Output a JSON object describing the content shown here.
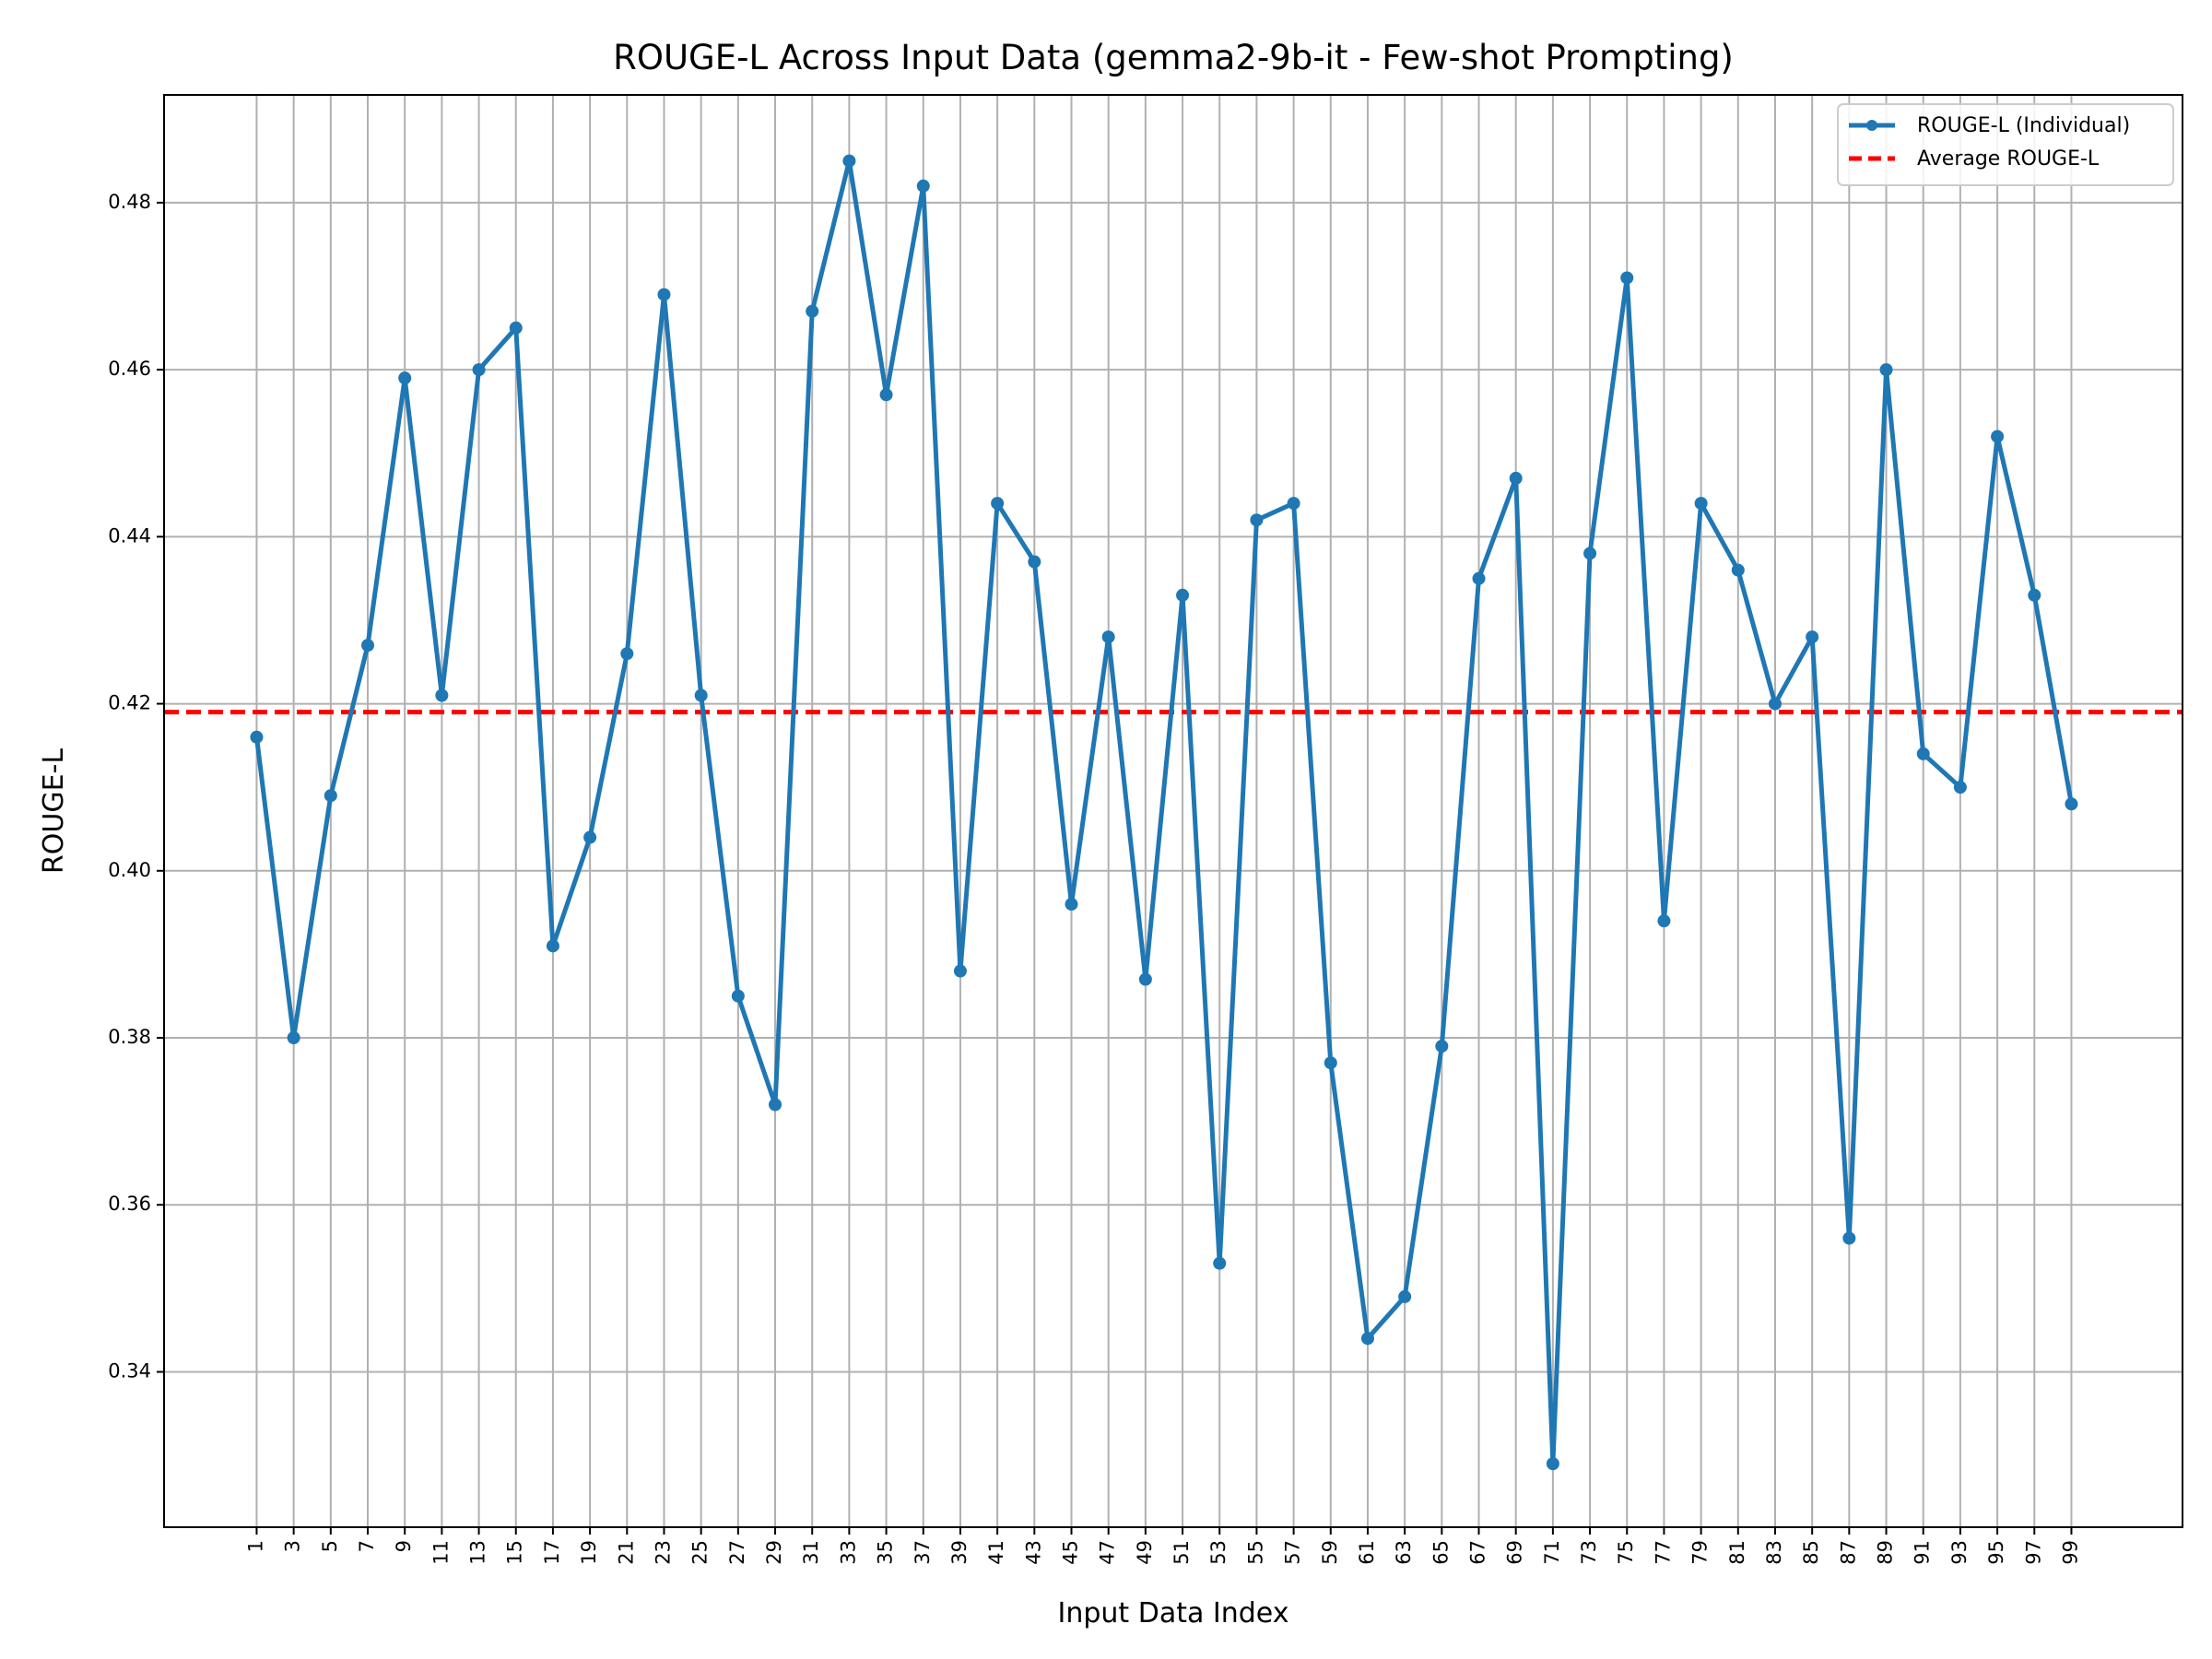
{
  "chart_data": {
    "type": "line",
    "title": "ROUGE-L Across Input Data (gemma2-9b-it - Few-shot Prompting)",
    "xlabel": "Input Data Index",
    "ylabel": "ROUGE-L",
    "x": [
      1,
      3,
      5,
      7,
      9,
      11,
      13,
      15,
      17,
      19,
      21,
      23,
      25,
      27,
      29,
      31,
      33,
      35,
      37,
      39,
      41,
      43,
      45,
      47,
      49,
      51,
      53,
      55,
      57,
      59,
      61,
      63,
      65,
      67,
      69,
      71,
      73,
      75,
      77,
      79,
      81,
      83,
      85,
      87,
      89,
      91,
      93,
      95,
      97,
      99
    ],
    "xticks": [
      "1",
      "3",
      "5",
      "7",
      "9",
      "11",
      "13",
      "15",
      "17",
      "19",
      "21",
      "23",
      "25",
      "27",
      "29",
      "31",
      "33",
      "35",
      "37",
      "39",
      "41",
      "43",
      "45",
      "47",
      "49",
      "51",
      "53",
      "55",
      "57",
      "59",
      "61",
      "63",
      "65",
      "67",
      "69",
      "71",
      "73",
      "75",
      "77",
      "79",
      "81",
      "83",
      "85",
      "87",
      "89",
      "91",
      "93",
      "95",
      "97",
      "99"
    ],
    "yticks": [
      "0.34",
      "0.36",
      "0.38",
      "0.40",
      "0.42",
      "0.44",
      "0.46",
      "0.48"
    ],
    "ytick_values": [
      0.34,
      0.36,
      0.38,
      0.4,
      0.42,
      0.44,
      0.46,
      0.48
    ],
    "xlim": [
      -4,
      105
    ],
    "ylim": [
      0.3214,
      0.4929
    ],
    "grid": true,
    "series": [
      {
        "name": "ROUGE-L (Individual)",
        "color": "#1f77b4",
        "style": "solid-with-markers",
        "values": [
          0.416,
          0.38,
          0.409,
          0.427,
          0.459,
          0.421,
          0.46,
          0.465,
          0.391,
          0.404,
          0.426,
          0.469,
          0.421,
          0.385,
          0.372,
          0.467,
          0.485,
          0.457,
          0.482,
          0.388,
          0.444,
          0.437,
          0.396,
          0.428,
          0.387,
          0.433,
          0.353,
          0.442,
          0.444,
          0.377,
          0.344,
          0.349,
          0.379,
          0.435,
          0.447,
          0.329,
          0.438,
          0.471,
          0.394,
          0.444,
          0.436,
          0.42,
          0.428,
          0.356,
          0.46,
          0.414,
          0.41,
          0.452,
          0.433,
          0.408
        ]
      },
      {
        "name": "Average ROUGE-L",
        "color": "#ff0000",
        "style": "dashed",
        "value": 0.419
      }
    ],
    "legend_position": "top-right"
  }
}
